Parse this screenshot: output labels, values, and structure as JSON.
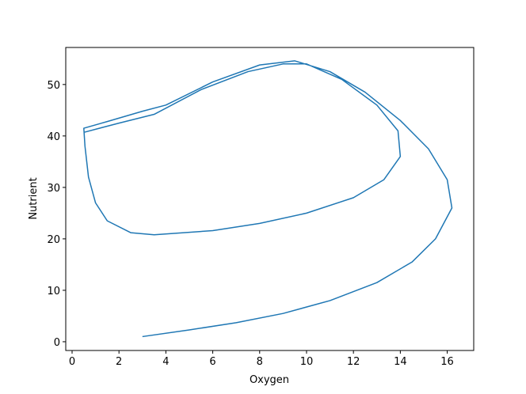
{
  "chart_data": {
    "type": "line",
    "x_label": "Oxygen",
    "y_label": "Nutrient",
    "x": [
      3,
      5,
      7,
      9,
      11,
      13,
      14.5,
      15.5,
      16.2,
      16,
      15.2,
      14,
      12.5,
      11,
      9.5,
      8,
      6,
      4,
      3,
      1.5,
      0.5,
      0.55,
      0.7,
      1,
      1.5,
      2.5,
      3.5,
      6,
      8,
      10,
      12,
      13.3,
      14,
      13.9,
      13,
      11.5,
      10,
      9,
      7.5,
      5.5,
      3.5,
      2,
      0.5
    ],
    "series": [
      {
        "color": "#1f77b4",
        "values": [
          1,
          2.3,
          3.7,
          5.5,
          8,
          11.5,
          15.5,
          20,
          26,
          31.5,
          37.5,
          43,
          48.5,
          52.5,
          54.6,
          53.8,
          50.5,
          46,
          44.8,
          42.8,
          41.5,
          38,
          32,
          27,
          23.5,
          21.2,
          20.8,
          21.6,
          23,
          25,
          28,
          31.5,
          36,
          41,
          46,
          51,
          54,
          54,
          52.5,
          49,
          44.2,
          42.5,
          40.7
        ]
      }
    ],
    "xlim": [
      -0.27,
      17.13
    ],
    "xticks": [
      0,
      2,
      4,
      6,
      8,
      10,
      12,
      14,
      16
    ],
    "ylim": [
      -1.7,
      57.2
    ],
    "yticks": [
      0,
      10,
      20,
      30,
      40,
      50
    ]
  }
}
